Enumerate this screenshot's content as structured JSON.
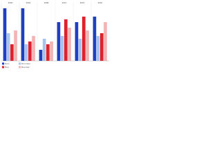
{
  "chart_data": {
    "type": "bar",
    "categories": [
      "2000",
      "2004",
      "2008",
      "2012",
      "2016",
      "2020"
    ],
    "series": [
      {
        "name": "Dem",
        "color": "#1f3fbf",
        "values": [
          95,
          95,
          20,
          70,
          70,
          80
        ]
      },
      {
        "name": "Dem lean",
        "color": "#a9c4ec",
        "values": [
          50,
          30,
          40,
          45,
          40,
          45
        ]
      },
      {
        "name": "Rep",
        "color": "#e0202a",
        "values": [
          30,
          35,
          30,
          75,
          80,
          50
        ]
      },
      {
        "name": "Rep lean",
        "color": "#f4b4b4",
        "values": [
          55,
          45,
          35,
          60,
          55,
          70
        ]
      }
    ],
    "ylim": [
      0,
      100
    ]
  }
}
